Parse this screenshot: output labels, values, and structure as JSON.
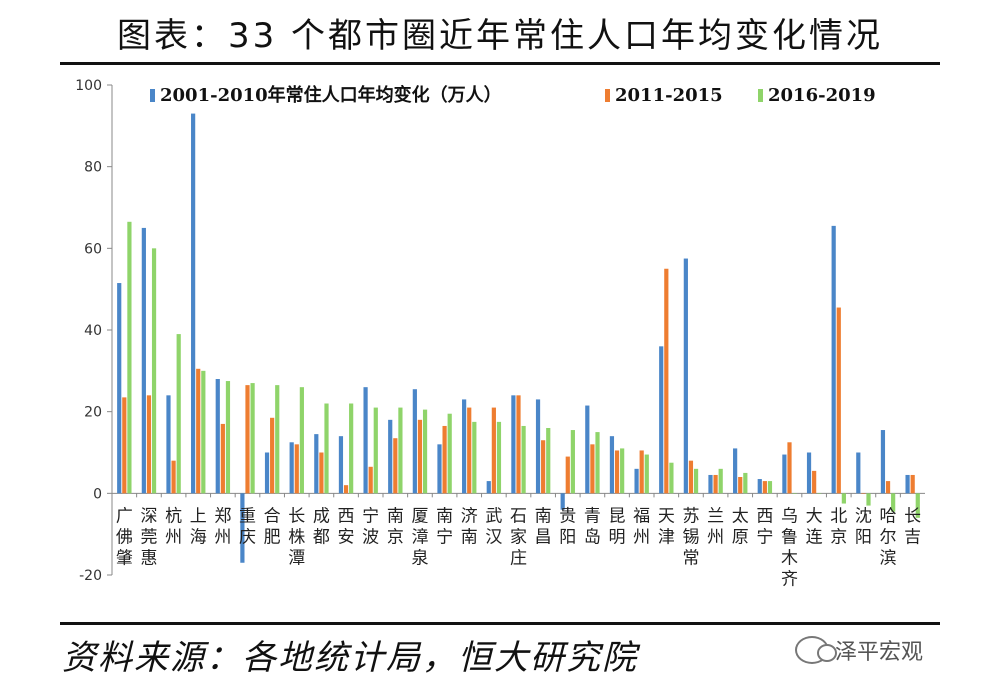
{
  "header": {
    "title": "图表：33 个都市圈近年常住人口年均变化情况"
  },
  "footer": {
    "source": "资料来源：各地统计局，恒大研究院",
    "watermark": "泽平宏观",
    "watermark_icon": "wechat-icon"
  },
  "colors": {
    "s1": "#4a86c8",
    "s2": "#ee7d31",
    "s3": "#8fd46a"
  },
  "chart_data": {
    "type": "bar",
    "title": "",
    "ylim": [
      -20,
      100
    ],
    "yticks": [
      -20,
      0,
      20,
      40,
      60,
      80,
      100
    ],
    "legend_position": "top",
    "grid": false,
    "categories": [
      "广佛肇",
      "深莞惠",
      "杭州",
      "上海",
      "郑州",
      "重庆",
      "合肥",
      "长株潭",
      "成都",
      "西安",
      "宁波",
      "南京",
      "厦漳泉",
      "南宁",
      "济南",
      "武汉",
      "石家庄",
      "南昌",
      "贵阳",
      "青岛",
      "昆明",
      "福州",
      "天津",
      "苏锡常",
      "兰州",
      "太原",
      "西宁",
      "乌鲁木齐",
      "大连",
      "北京",
      "沈阳",
      "哈尔滨",
      "长吉"
    ],
    "series": [
      {
        "name": "2001-2010年常住人口年均变化（万人）",
        "values": [
          51.5,
          65,
          24,
          93,
          28,
          -17,
          10,
          12.5,
          14.5,
          14,
          26,
          18,
          25.5,
          12,
          23,
          3,
          24,
          23,
          -4,
          21.5,
          14,
          6,
          36,
          57.5,
          4.5,
          11,
          3.5,
          9.5,
          10,
          65.5,
          10,
          15.5,
          4.5
        ]
      },
      {
        "name": "2011-2015",
        "values": [
          23.5,
          24,
          8,
          30.5,
          17,
          26.5,
          18.5,
          12,
          10,
          2,
          6.5,
          13.5,
          18,
          16.5,
          21,
          21,
          24,
          13,
          9,
          12,
          10.5,
          10.5,
          55,
          8,
          4.5,
          4,
          3,
          12.5,
          5.5,
          45.5,
          0,
          3,
          4.5
        ]
      },
      {
        "name": "2016-2019",
        "values": [
          66.5,
          60,
          39,
          30,
          27.5,
          27,
          26.5,
          26,
          22,
          22,
          21,
          21,
          20.5,
          19.5,
          17.5,
          17.5,
          16.5,
          16,
          15.5,
          15,
          11,
          9.5,
          7.5,
          6,
          6,
          5,
          3,
          0,
          0,
          -2.5,
          -3,
          -4.5,
          -6
        ]
      }
    ]
  }
}
